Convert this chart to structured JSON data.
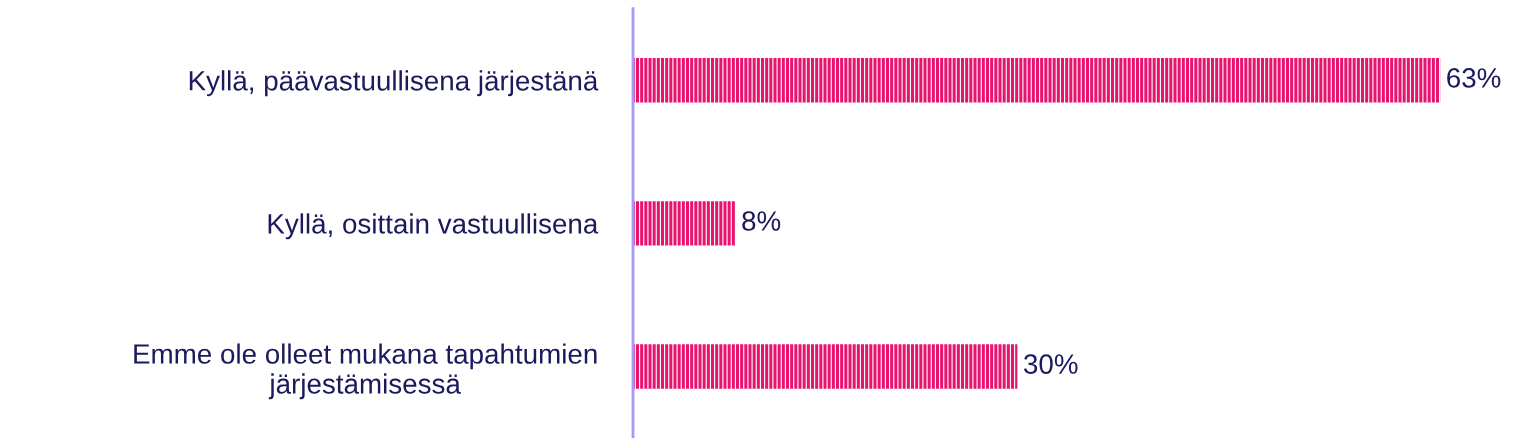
{
  "chart_data": {
    "type": "bar",
    "orientation": "horizontal",
    "categories": [
      "Kyllä, päävastuullisena järjestänä",
      "Kyllä, osittain vastuullisena",
      "Emme ole olleet mukana tapahtumien\njärjestämisessä"
    ],
    "values": [
      63,
      8,
      30
    ],
    "value_labels": [
      "63%",
      "8%",
      "30%"
    ],
    "color": "#e8136f",
    "grid": false,
    "legend": false
  }
}
